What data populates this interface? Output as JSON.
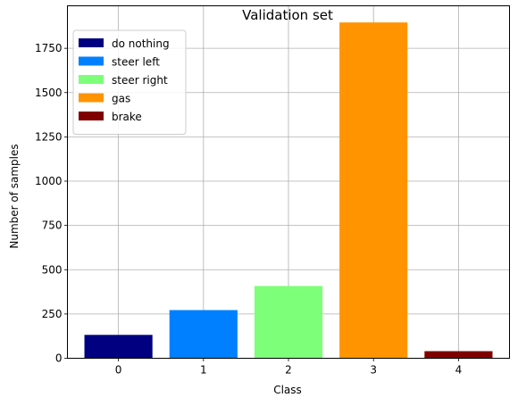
{
  "chart_data": {
    "type": "bar",
    "title": "Validation set",
    "xlabel": "Class",
    "ylabel": "Number of samples",
    "categories": [
      "0",
      "1",
      "2",
      "3",
      "4"
    ],
    "values": [
      132,
      272,
      408,
      1896,
      40
    ],
    "series_names": [
      "do nothing",
      "steer left",
      "steer right",
      "gas",
      "brake"
    ],
    "colors": [
      "#000080",
      "#0080ff",
      "#7dff7a",
      "#ff9400",
      "#800000"
    ],
    "ylim": [
      0,
      1990
    ],
    "yticks": [
      0,
      250,
      500,
      750,
      1000,
      1250,
      1500,
      1750
    ],
    "grid": true,
    "legend": "upper-left"
  }
}
